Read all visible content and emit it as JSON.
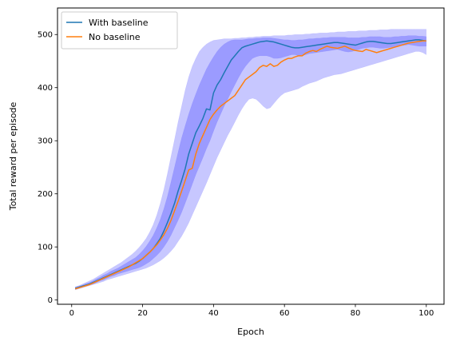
{
  "chart_data": {
    "type": "line",
    "title": "",
    "xlabel": "Epoch",
    "ylabel": "Total reward per episode",
    "xlim": [
      -4,
      105
    ],
    "ylim": [
      -8,
      550
    ],
    "xticks": [
      0,
      20,
      40,
      60,
      80,
      100
    ],
    "yticks": [
      0,
      100,
      200,
      300,
      400,
      500
    ],
    "grid": false,
    "legend": "top-left",
    "x": [
      1,
      2,
      3,
      4,
      5,
      6,
      7,
      8,
      9,
      10,
      11,
      12,
      13,
      14,
      15,
      16,
      17,
      18,
      19,
      20,
      21,
      22,
      23,
      24,
      25,
      26,
      27,
      28,
      29,
      30,
      31,
      32,
      33,
      34,
      35,
      36,
      37,
      38,
      39,
      40,
      41,
      42,
      43,
      44,
      45,
      46,
      47,
      48,
      49,
      50,
      51,
      52,
      53,
      54,
      55,
      56,
      57,
      58,
      59,
      60,
      61,
      62,
      63,
      64,
      65,
      66,
      67,
      68,
      69,
      70,
      71,
      72,
      73,
      74,
      75,
      76,
      77,
      78,
      79,
      80,
      81,
      82,
      83,
      84,
      85,
      86,
      87,
      88,
      89,
      90,
      91,
      92,
      93,
      94,
      95,
      96,
      97,
      98,
      99,
      100
    ],
    "series": [
      {
        "name": "With baseline",
        "color": "#1f77b4",
        "values": [
          22,
          24,
          26,
          28,
          30,
          33,
          36,
          39,
          42,
          45,
          48,
          51,
          54,
          57,
          60,
          63,
          66,
          69,
          73,
          78,
          84,
          90,
          97,
          106,
          116,
          130,
          146,
          163,
          182,
          205,
          225,
          247,
          275,
          295,
          315,
          328,
          342,
          360,
          358,
          390,
          405,
          415,
          428,
          440,
          452,
          460,
          468,
          475,
          478,
          480,
          482,
          484,
          486,
          487,
          488,
          487,
          486,
          484,
          482,
          480,
          478,
          476,
          475,
          475,
          476,
          477,
          478,
          479,
          480,
          481,
          482,
          483,
          484,
          485,
          485,
          484,
          483,
          482,
          481,
          480,
          482,
          484,
          486,
          487,
          487,
          486,
          485,
          484,
          483,
          483,
          484,
          485,
          486,
          487,
          488,
          489,
          490,
          490,
          489,
          488
        ]
      },
      {
        "name": "No baseline",
        "color": "#ff7f0e",
        "values": [
          21,
          23,
          25,
          27,
          29,
          32,
          35,
          38,
          41,
          44,
          47,
          50,
          53,
          56,
          59,
          62,
          66,
          70,
          74,
          78,
          84,
          90,
          97,
          104,
          113,
          123,
          135,
          150,
          168,
          186,
          205,
          225,
          245,
          248,
          275,
          295,
          310,
          325,
          340,
          350,
          358,
          365,
          370,
          375,
          380,
          385,
          395,
          405,
          415,
          420,
          425,
          430,
          438,
          442,
          440,
          445,
          440,
          442,
          448,
          452,
          455,
          455,
          458,
          460,
          460,
          465,
          468,
          470,
          468,
          472,
          475,
          478,
          476,
          475,
          474,
          476,
          478,
          475,
          472,
          470,
          469,
          468,
          472,
          470,
          468,
          466,
          468,
          470,
          472,
          474,
          476,
          478,
          480,
          482,
          484,
          485,
          486,
          487,
          488,
          488
        ]
      }
    ],
    "bands": [
      {
        "series": "With baseline",
        "color": "#0000ff",
        "opacity": 0.22,
        "inner_lower": [
          20,
          22,
          24,
          26,
          28,
          30,
          33,
          36,
          38,
          41,
          44,
          46,
          49,
          51,
          53,
          55,
          57,
          59,
          61,
          64,
          68,
          72,
          78,
          84,
          91,
          100,
          110,
          122,
          136,
          150,
          165,
          182,
          200,
          218,
          236,
          252,
          268,
          285,
          300,
          318,
          335,
          350,
          365,
          378,
          392,
          405,
          418,
          430,
          440,
          448,
          455,
          458,
          460,
          460,
          460,
          458,
          455,
          455,
          456,
          458,
          460,
          462,
          462,
          460,
          460,
          462,
          464,
          465,
          466,
          467,
          468,
          469,
          470,
          471,
          472,
          470,
          468,
          467,
          468,
          470,
          472,
          474,
          475,
          476,
          476,
          475,
          474,
          474,
          475,
          476,
          477,
          478,
          479,
          480,
          481,
          480,
          479,
          478,
          478,
          478
        ],
        "inner_upper": [
          24,
          26,
          28,
          31,
          33,
          36,
          40,
          43,
          47,
          50,
          54,
          57,
          60,
          64,
          68,
          72,
          76,
          80,
          86,
          93,
          101,
          111,
          122,
          136,
          152,
          172,
          195,
          222,
          250,
          278,
          305,
          328,
          350,
          370,
          388,
          405,
          420,
          435,
          447,
          458,
          468,
          476,
          482,
          486,
          489,
          490,
          490,
          490,
          491,
          492,
          492,
          493,
          493,
          494,
          494,
          494,
          493,
          492,
          491,
          490,
          490,
          489,
          489,
          490,
          490,
          491,
          492,
          492,
          493,
          493,
          494,
          494,
          495,
          495,
          495,
          495,
          495,
          494,
          494,
          494,
          494,
          495,
          495,
          496,
          496,
          496,
          496,
          495,
          495,
          495,
          496,
          496,
          497,
          497,
          498,
          498,
          498,
          497,
          497,
          496
        ],
        "outer_lower": [
          19,
          21,
          23,
          25,
          27,
          29,
          31,
          33,
          35,
          38,
          40,
          42,
          44,
          46,
          48,
          50,
          52,
          54,
          56,
          58,
          60,
          63,
          66,
          70,
          74,
          79,
          85,
          92,
          100,
          110,
          120,
          132,
          145,
          160,
          175,
          190,
          205,
          220,
          236,
          252,
          268,
          282,
          296,
          310,
          322,
          335,
          348,
          360,
          370,
          378,
          380,
          378,
          372,
          365,
          360,
          362,
          370,
          378,
          385,
          390,
          392,
          394,
          396,
          398,
          402,
          405,
          408,
          410,
          412,
          415,
          418,
          420,
          422,
          424,
          425,
          426,
          428,
          430,
          432,
          434,
          436,
          438,
          440,
          442,
          444,
          446,
          448,
          450,
          452,
          454,
          456,
          458,
          460,
          462,
          464,
          466,
          468,
          468,
          466,
          462
        ],
        "outer_upper": [
          25,
          27,
          30,
          33,
          36,
          39,
          43,
          47,
          51,
          55,
          59,
          63,
          67,
          71,
          76,
          81,
          86,
          92,
          99,
          107,
          116,
          128,
          142,
          160,
          182,
          208,
          238,
          270,
          302,
          335,
          365,
          395,
          420,
          440,
          455,
          468,
          476,
          482,
          486,
          489,
          490,
          491,
          492,
          492,
          492,
          493,
          493,
          494,
          494,
          495,
          495,
          496,
          496,
          497,
          497,
          497,
          498,
          498,
          498,
          498,
          499,
          499,
          500,
          500,
          500,
          501,
          501,
          502,
          502,
          503,
          503,
          503,
          504,
          504,
          505,
          505,
          505,
          506,
          506,
          506,
          507,
          507,
          507,
          508,
          508,
          508,
          509,
          509,
          509,
          510,
          510,
          510,
          510,
          510,
          510,
          510,
          510,
          510,
          510,
          510
        ]
      }
    ]
  }
}
